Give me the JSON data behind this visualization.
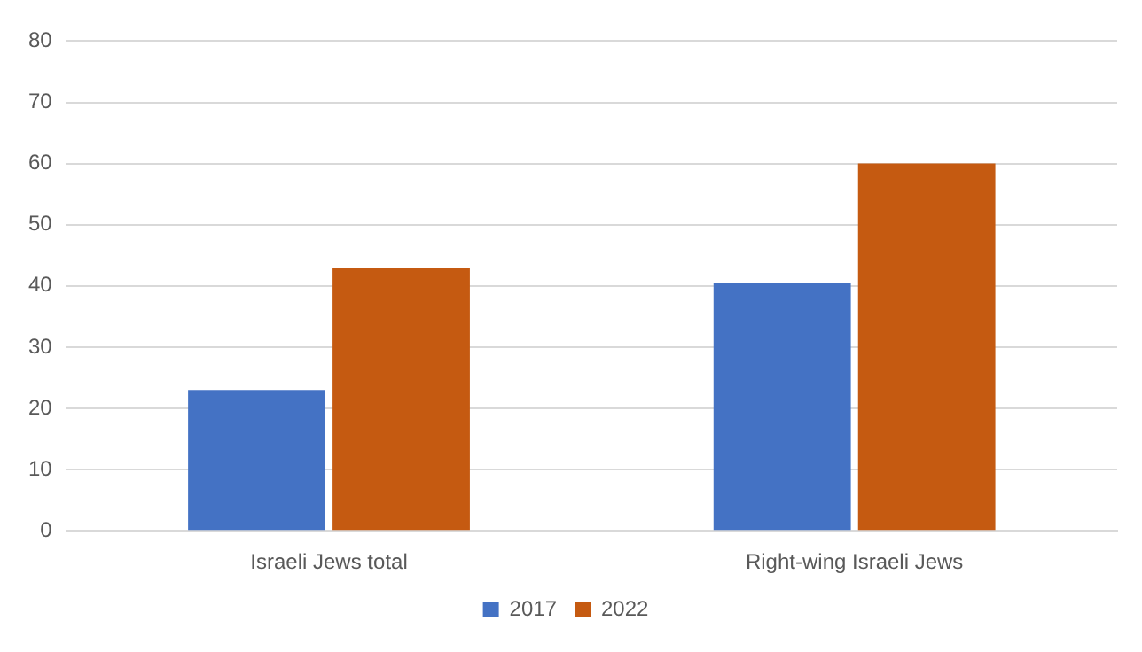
{
  "chart_data": {
    "type": "bar",
    "categories": [
      "Israeli Jews total",
      "Right-wing Israeli Jews"
    ],
    "series": [
      {
        "name": "2017",
        "color": "#4472c4",
        "values": [
          23,
          40.5
        ]
      },
      {
        "name": "2022",
        "color": "#c55a11",
        "values": [
          43,
          60
        ]
      }
    ],
    "ylim": [
      0,
      80
    ],
    "yticks": [
      0,
      10,
      20,
      30,
      40,
      50,
      60,
      70,
      80
    ],
    "grid": "y",
    "legend": "bottom"
  }
}
